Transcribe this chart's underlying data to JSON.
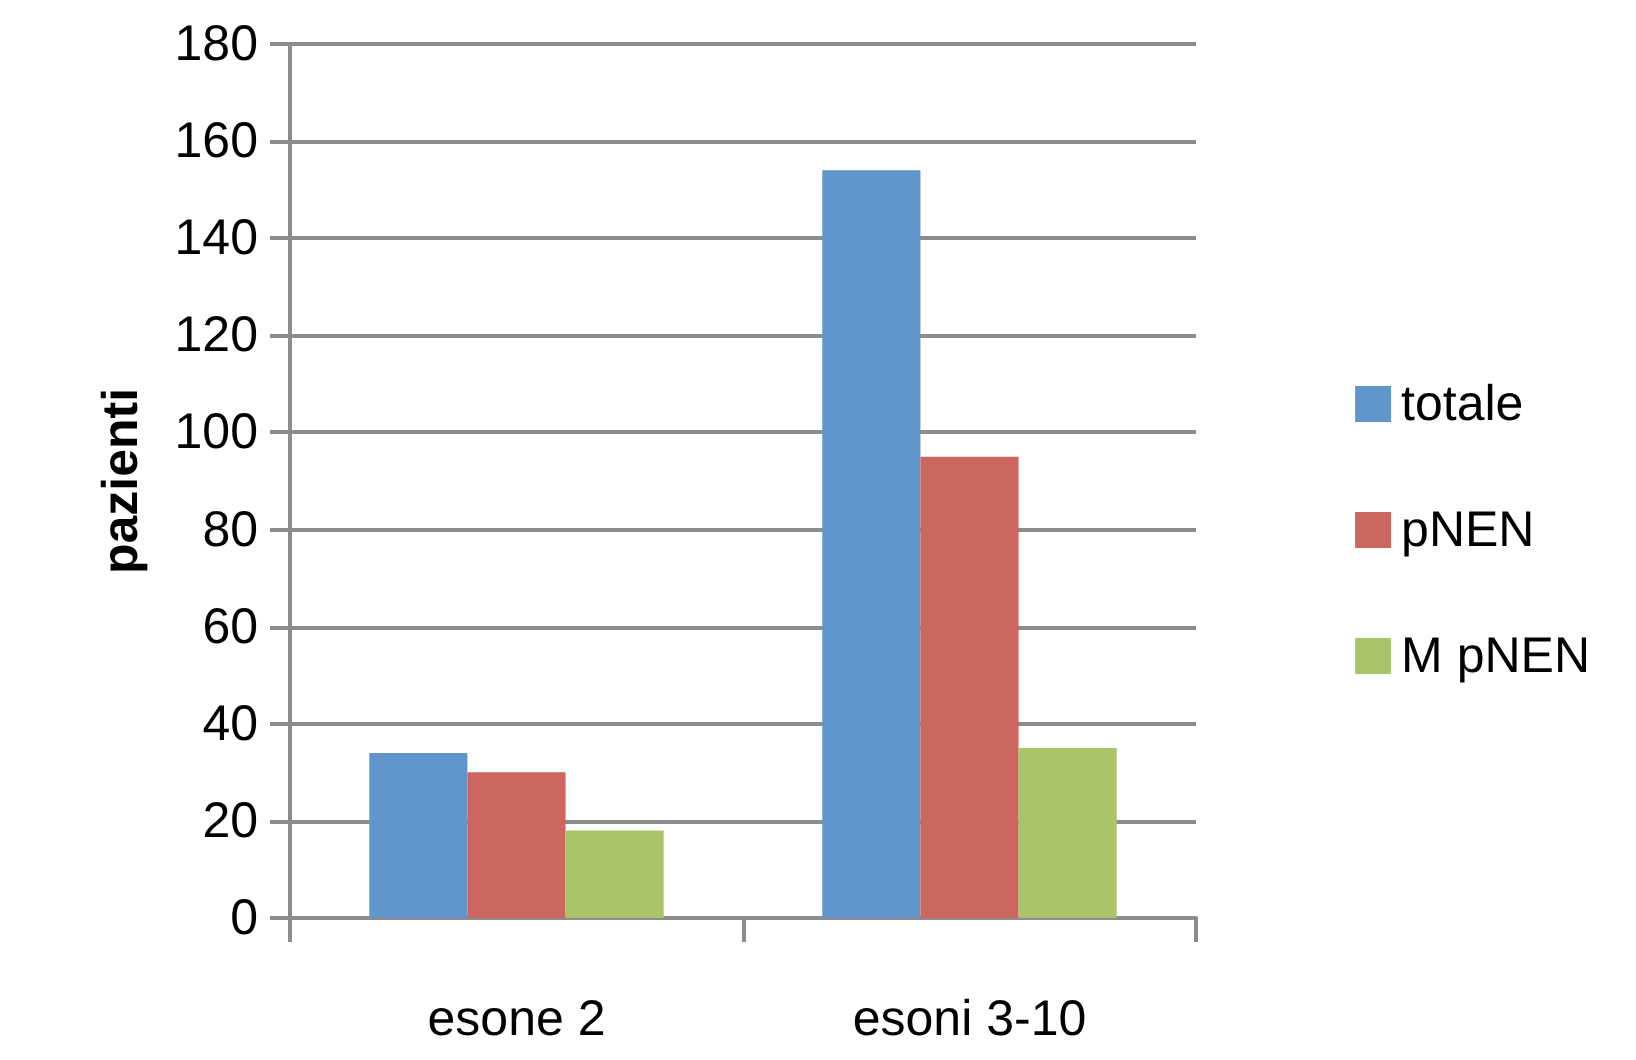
{
  "chart_data": {
    "type": "bar",
    "ylabel": "pazienti",
    "categories": [
      "esone 2",
      "esoni 3-10"
    ],
    "series": [
      {
        "name": "totale",
        "color": "#6096cb",
        "values": [
          34,
          154
        ]
      },
      {
        "name": "pNEN",
        "color": "#cd665e",
        "values": [
          30,
          95
        ]
      },
      {
        "name": "M pNEN",
        "color": "#aac46a",
        "values": [
          18,
          35
        ]
      }
    ],
    "ylim": [
      0,
      180
    ],
    "yticks": [
      0,
      20,
      40,
      60,
      80,
      100,
      120,
      140,
      160,
      180
    ],
    "grid": "y",
    "legend": "right"
  }
}
